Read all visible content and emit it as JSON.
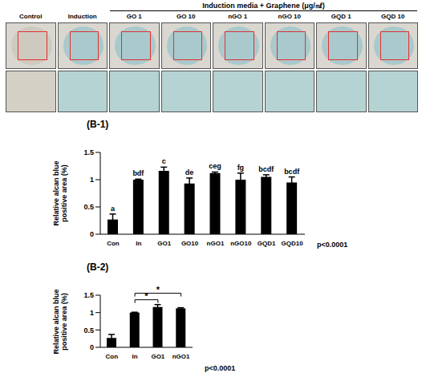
{
  "image_panel": {
    "group_label": "Induction media + Graphene (μg/㎖)",
    "labels": [
      "Control",
      "Induction",
      "GO 1",
      "GO 10",
      "nGO 1",
      "nGO 10",
      "GQD 1",
      "GQD 10"
    ]
  },
  "chart_data": [
    {
      "type": "bar",
      "title": "(B-1)",
      "y_label": "Relative alcan blue positive area (%)",
      "categories": [
        "Con",
        "In",
        "GO1",
        "GO10",
        "nGO1",
        "nGO10",
        "GQD1",
        "GQD10"
      ],
      "values": [
        0.27,
        1.0,
        1.16,
        0.93,
        1.12,
        1.0,
        1.05,
        0.95
      ],
      "errors": [
        0.1,
        0.01,
        0.07,
        0.1,
        0.02,
        0.12,
        0.04,
        0.1
      ],
      "group_letters": [
        "a",
        "bdf",
        "c",
        "de",
        "ceg",
        "fg",
        "bcdf",
        "bcdf"
      ],
      "color": "#000000",
      "ylim": [
        0,
        1.5
      ],
      "yticks": [
        0,
        0.5,
        1,
        1.5
      ],
      "p_value": "p<0.0001"
    },
    {
      "type": "bar",
      "title": "(B-2)",
      "y_label": "Relative alcan blue positive area (%)",
      "categories": [
        "Con",
        "In",
        "GO1",
        "nGO1"
      ],
      "values": [
        0.27,
        1.0,
        1.16,
        1.12
      ],
      "errors": [
        0.1,
        0.01,
        0.07,
        0.02
      ],
      "comparisons": [
        {
          "from": "In",
          "to": "GO1",
          "label": "*"
        },
        {
          "from": "In",
          "to": "nGO1",
          "label": "*"
        }
      ],
      "color": "#000000",
      "ylim": [
        0,
        1.5
      ],
      "yticks": [
        0,
        0.5,
        1,
        1.5
      ],
      "p_value": "p<0.0001"
    }
  ]
}
